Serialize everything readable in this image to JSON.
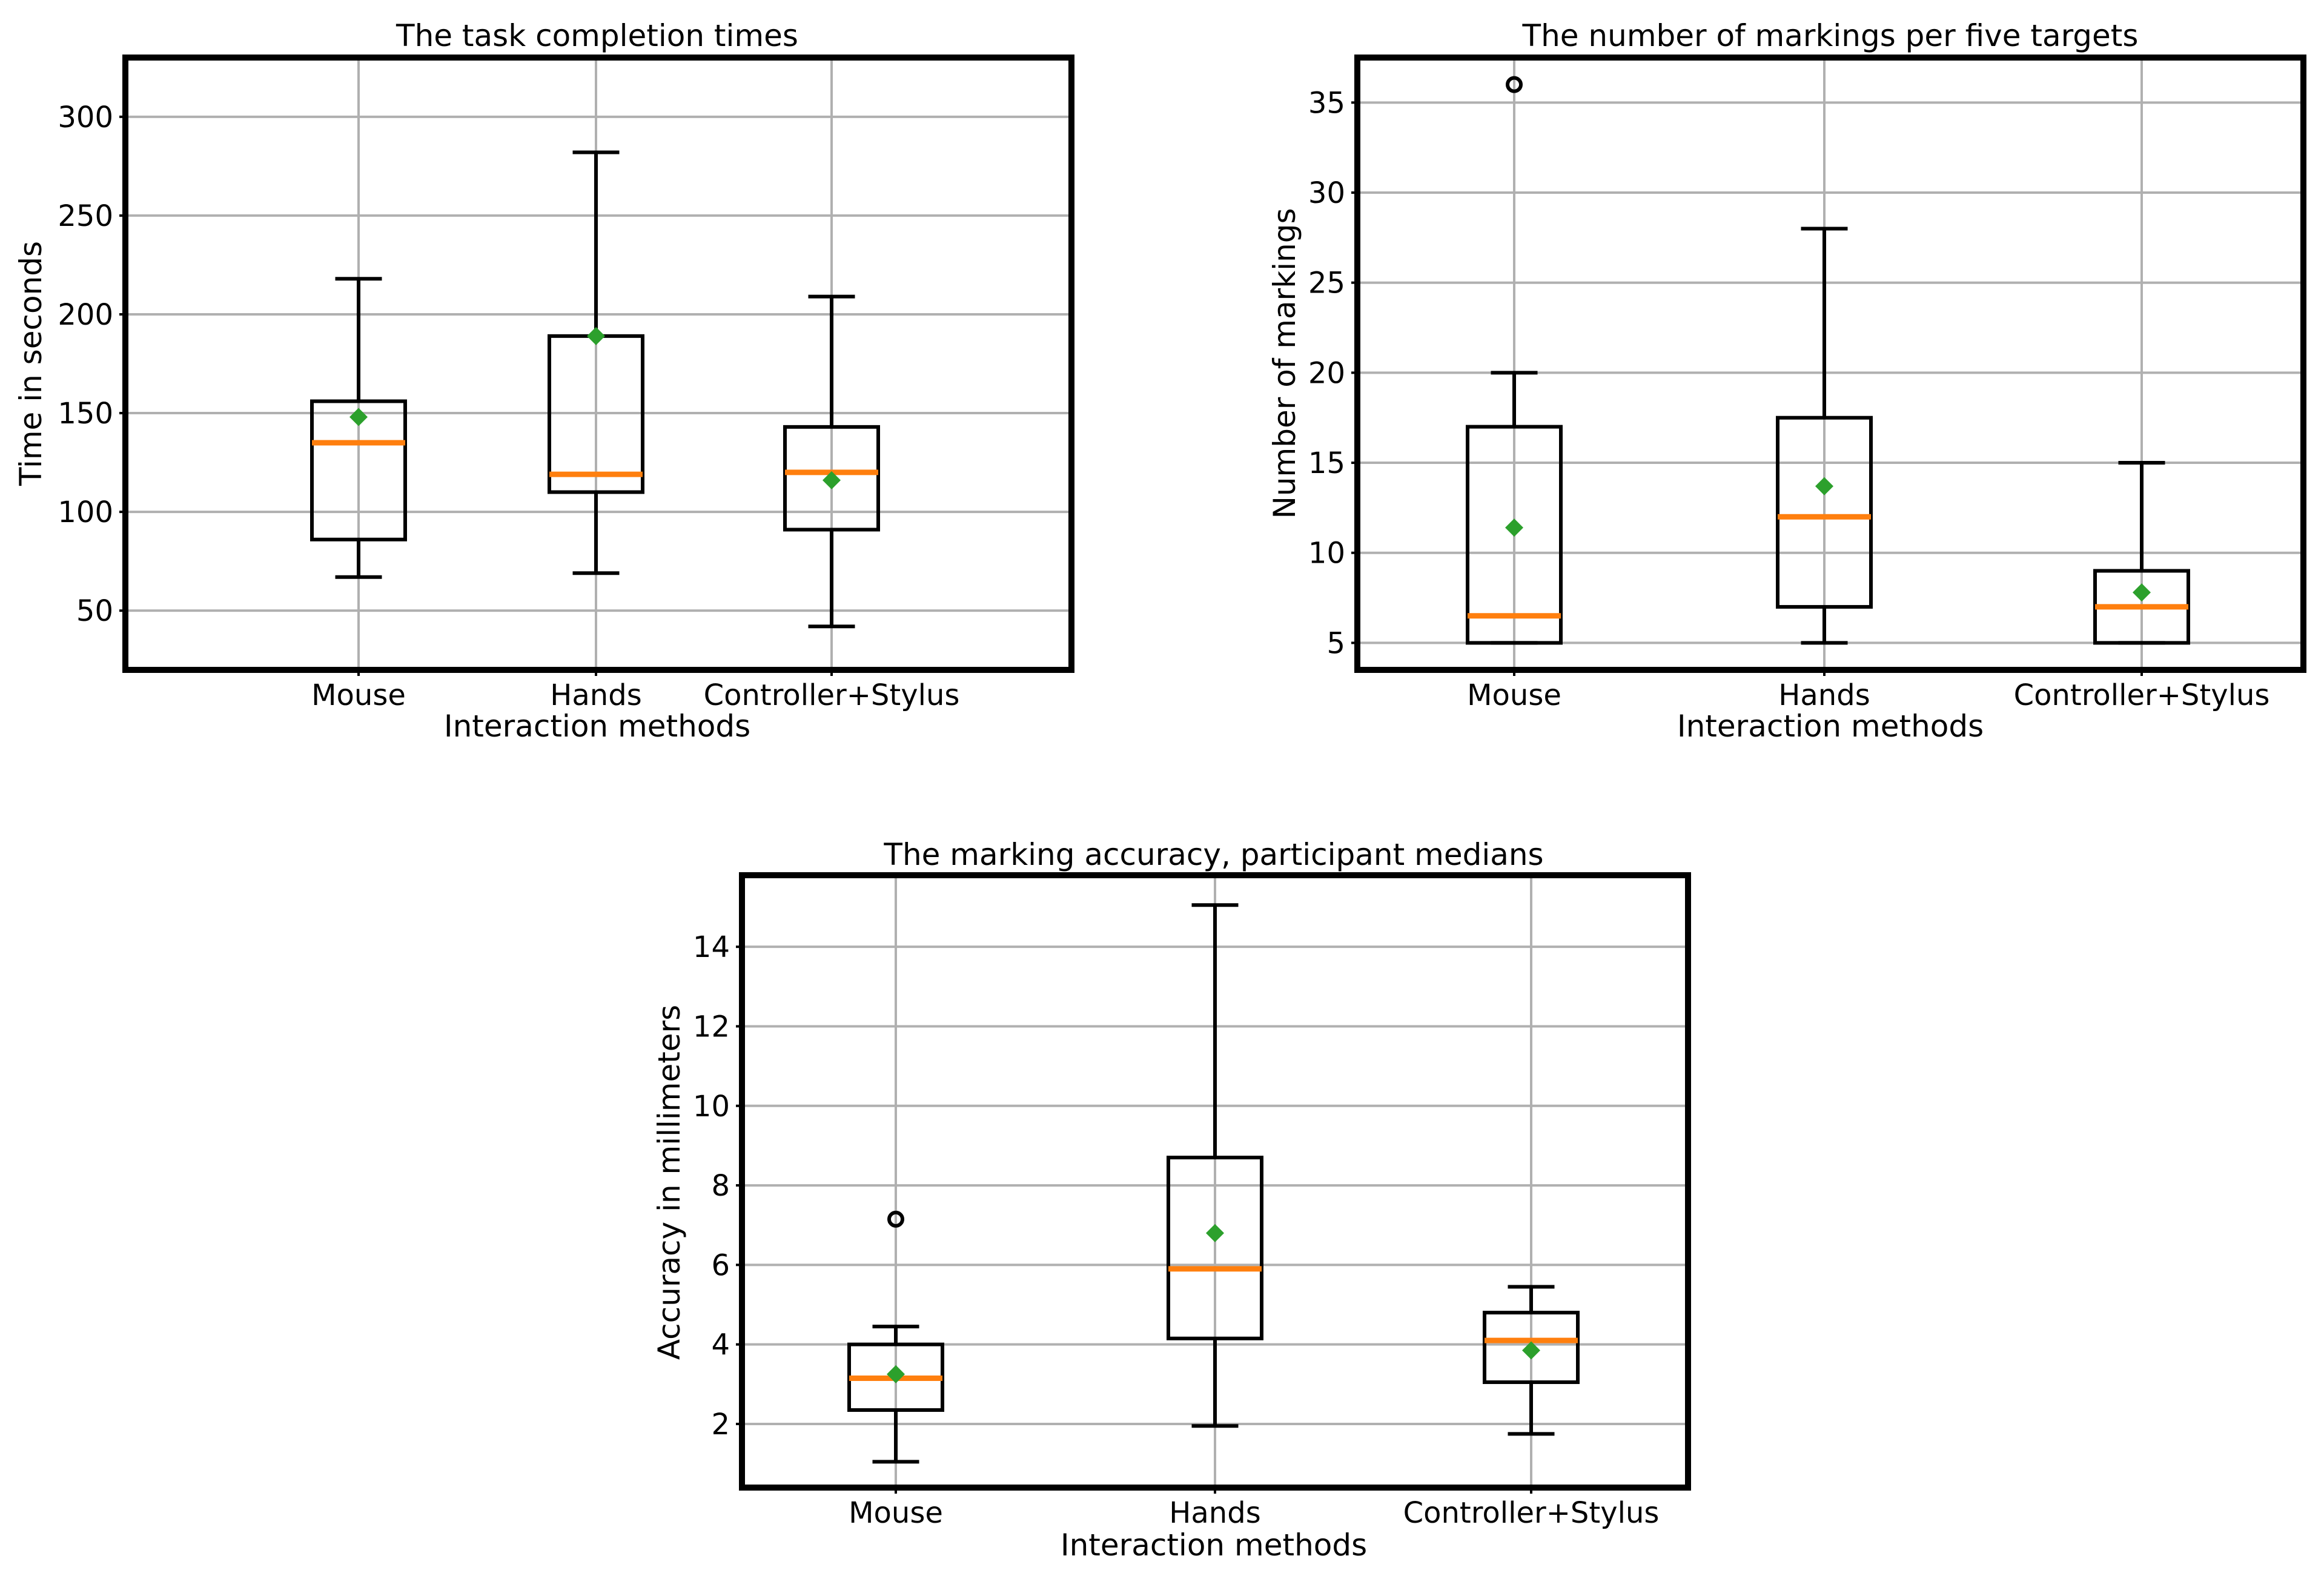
{
  "chart_data": [
    {
      "type": "boxplot",
      "title": "The task completion times",
      "xlabel": "Interaction methods",
      "ylabel": "Time in seconds",
      "categories": [
        "Mouse",
        "Hands",
        "Controller+Stylus"
      ],
      "ylim": [
        20,
        330
      ],
      "yticks": [
        50,
        100,
        150,
        200,
        250,
        300
      ],
      "grid": true,
      "series": [
        {
          "name": "Mouse",
          "whisker_low": 67,
          "q1": 86,
          "median": 135,
          "q3": 156,
          "whisker_high": 218,
          "mean": 148,
          "outliers": []
        },
        {
          "name": "Hands",
          "whisker_low": 69,
          "q1": 110,
          "median": 119,
          "q3": 189,
          "whisker_high": 282,
          "mean": 189,
          "outliers": []
        },
        {
          "name": "Controller+Stylus",
          "whisker_low": 42,
          "q1": 91,
          "median": 120,
          "q3": 143,
          "whisker_high": 209,
          "mean": 116,
          "outliers": []
        }
      ]
    },
    {
      "type": "boxplot",
      "title": "The number of markings per five targets",
      "xlabel": "Interaction methods",
      "ylabel": "Number of markings",
      "categories": [
        "Mouse",
        "Hands",
        "Controller+Stylus"
      ],
      "ylim": [
        3.5,
        37.5
      ],
      "yticks": [
        5,
        10,
        15,
        20,
        25,
        30,
        35
      ],
      "grid": true,
      "series": [
        {
          "name": "Mouse",
          "whisker_low": 5,
          "q1": 5,
          "median": 6.5,
          "q3": 17,
          "whisker_high": 20,
          "mean": 11.4,
          "outliers": [
            36
          ]
        },
        {
          "name": "Hands",
          "whisker_low": 5,
          "q1": 7,
          "median": 12,
          "q3": 17.5,
          "whisker_high": 28,
          "mean": 13.7,
          "outliers": []
        },
        {
          "name": "Controller+Stylus",
          "whisker_low": 5,
          "q1": 5,
          "median": 7,
          "q3": 9,
          "whisker_high": 15,
          "mean": 7.8,
          "outliers": []
        }
      ]
    },
    {
      "type": "boxplot",
      "title": "The marking accuracy, participant medians",
      "xlabel": "Interaction methods",
      "ylabel": "Accuracy in millimeters",
      "categories": [
        "Mouse",
        "Hands",
        "Controller+Stylus"
      ],
      "ylim": [
        0.4,
        15.8
      ],
      "yticks": [
        2,
        4,
        6,
        8,
        10,
        12,
        14
      ],
      "grid": true,
      "series": [
        {
          "name": "Mouse",
          "whisker_low": 1.05,
          "q1": 2.35,
          "median": 3.15,
          "q3": 4.0,
          "whisker_high": 4.45,
          "mean": 3.25,
          "outliers": [
            7.15
          ]
        },
        {
          "name": "Hands",
          "whisker_low": 1.95,
          "q1": 4.15,
          "median": 5.9,
          "q3": 8.7,
          "whisker_high": 15.05,
          "mean": 6.8,
          "outliers": []
        },
        {
          "name": "Controller+Stylus",
          "whisker_low": 1.75,
          "q1": 3.05,
          "median": 4.1,
          "q3": 4.8,
          "whisker_high": 5.45,
          "mean": 3.85,
          "outliers": []
        }
      ]
    }
  ],
  "colors": {
    "median": "#ff7f0e",
    "mean": "#2ca02c",
    "box": "#000000",
    "grid": "#b0b0b0"
  }
}
